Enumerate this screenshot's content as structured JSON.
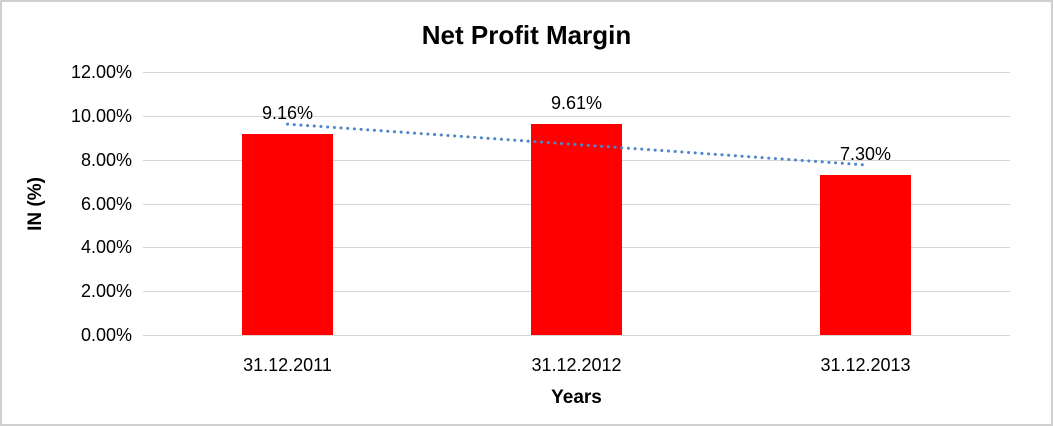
{
  "chart_data": {
    "type": "bar",
    "title": "Net Profit Margin",
    "xlabel": "Years",
    "ylabel": "IN (%)",
    "categories": [
      "31.12.2011",
      "31.12.2012",
      "31.12.2013"
    ],
    "series": [
      {
        "name": "Net Profit Margin",
        "values": [
          9.16,
          9.61,
          7.3
        ]
      }
    ],
    "data_labels": [
      "9.16%",
      "9.61%",
      "7.30%"
    ],
    "ylim": [
      0,
      12
    ],
    "ytick_step": 2,
    "ytick_labels": [
      "0.00%",
      "2.00%",
      "4.00%",
      "6.00%",
      "8.00%",
      "10.00%",
      "12.00%"
    ],
    "grid": true,
    "legend": "none",
    "bar_color": "#ff0000",
    "trendline": {
      "type": "linear",
      "style": "dotted",
      "color": "#4e87c7"
    }
  }
}
